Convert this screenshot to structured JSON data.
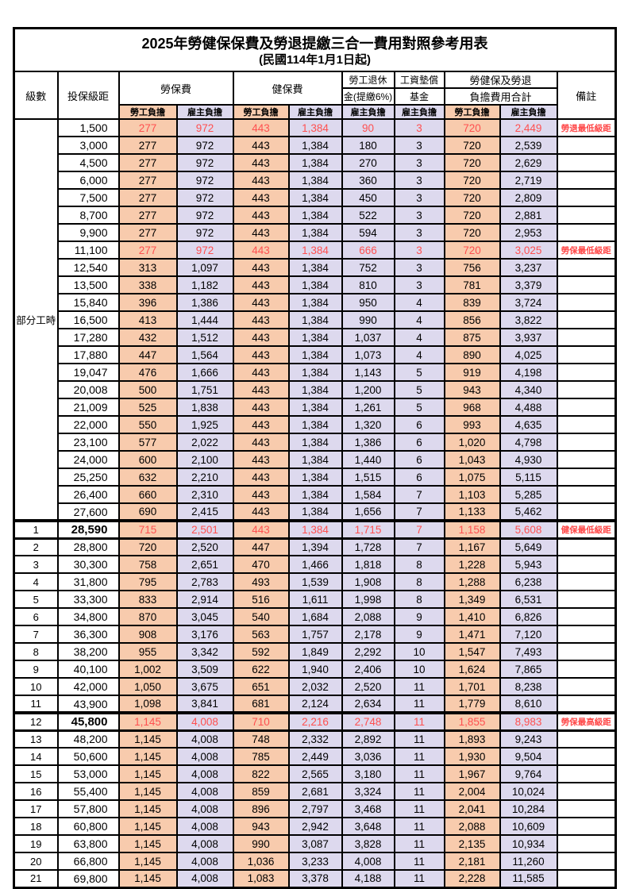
{
  "page": {
    "title": "2025年勞健保保費及勞退提繳三合一費用對照參考用表",
    "subtitle": "(民國114年1月1日起)"
  },
  "table": {
    "colors": {
      "employee_bg": "#F8CBAD",
      "employer_bg": "#DDD9EE",
      "highlight_text": "#FF5050",
      "remark_text": "#FF4646",
      "border": "#000000"
    },
    "headers": {
      "level": "級數",
      "salary": "投保級距",
      "labor_fee": "勞保費",
      "health_fee": "健保費",
      "pension_line1": "勞工退休",
      "pension_line2": "金(提繳6%)",
      "wage_fund_line1": "工資墊償",
      "wage_fund_line2": "基金",
      "total_line1": "勞健保及勞退",
      "total_line2": "負擔費用合計",
      "remark": "備註",
      "employee_burden": "勞工負擔",
      "employer_burden": "雇主負擔"
    },
    "part_time": {
      "label": "部分工時",
      "row_count": 23
    },
    "rows": [
      {
        "level": "",
        "salary": "1,500",
        "values": [
          "277",
          "972",
          "443",
          "1,384",
          "90",
          "3",
          "720",
          "2,449"
        ],
        "remark": "勞退最低級距",
        "highlight": true
      },
      {
        "level": "",
        "salary": "3,000",
        "values": [
          "277",
          "972",
          "443",
          "1,384",
          "180",
          "3",
          "720",
          "2,539"
        ],
        "remark": ""
      },
      {
        "level": "",
        "salary": "4,500",
        "values": [
          "277",
          "972",
          "443",
          "1,384",
          "270",
          "3",
          "720",
          "2,629"
        ],
        "remark": ""
      },
      {
        "level": "",
        "salary": "6,000",
        "values": [
          "277",
          "972",
          "443",
          "1,384",
          "360",
          "3",
          "720",
          "2,719"
        ],
        "remark": ""
      },
      {
        "level": "",
        "salary": "7,500",
        "values": [
          "277",
          "972",
          "443",
          "1,384",
          "450",
          "3",
          "720",
          "2,809"
        ],
        "remark": ""
      },
      {
        "level": "",
        "salary": "8,700",
        "values": [
          "277",
          "972",
          "443",
          "1,384",
          "522",
          "3",
          "720",
          "2,881"
        ],
        "remark": ""
      },
      {
        "level": "",
        "salary": "9,900",
        "values": [
          "277",
          "972",
          "443",
          "1,384",
          "594",
          "3",
          "720",
          "2,953"
        ],
        "remark": ""
      },
      {
        "level": "",
        "salary": "11,100",
        "values": [
          "277",
          "972",
          "443",
          "1,384",
          "666",
          "3",
          "720",
          "3,025"
        ],
        "remark": "勞保最低級距",
        "highlight": true
      },
      {
        "level": "",
        "salary": "12,540",
        "values": [
          "313",
          "1,097",
          "443",
          "1,384",
          "752",
          "3",
          "756",
          "3,237"
        ],
        "remark": ""
      },
      {
        "level": "",
        "salary": "13,500",
        "values": [
          "338",
          "1,182",
          "443",
          "1,384",
          "810",
          "3",
          "781",
          "3,379"
        ],
        "remark": ""
      },
      {
        "level": "",
        "salary": "15,840",
        "values": [
          "396",
          "1,386",
          "443",
          "1,384",
          "950",
          "4",
          "839",
          "3,724"
        ],
        "remark": ""
      },
      {
        "level": "",
        "salary": "16,500",
        "values": [
          "413",
          "1,444",
          "443",
          "1,384",
          "990",
          "4",
          "856",
          "3,822"
        ],
        "remark": ""
      },
      {
        "level": "",
        "salary": "17,280",
        "values": [
          "432",
          "1,512",
          "443",
          "1,384",
          "1,037",
          "4",
          "875",
          "3,937"
        ],
        "remark": ""
      },
      {
        "level": "",
        "salary": "17,880",
        "values": [
          "447",
          "1,564",
          "443",
          "1,384",
          "1,073",
          "4",
          "890",
          "4,025"
        ],
        "remark": ""
      },
      {
        "level": "",
        "salary": "19,047",
        "values": [
          "476",
          "1,666",
          "443",
          "1,384",
          "1,143",
          "5",
          "919",
          "4,198"
        ],
        "remark": ""
      },
      {
        "level": "",
        "salary": "20,008",
        "values": [
          "500",
          "1,751",
          "443",
          "1,384",
          "1,200",
          "5",
          "943",
          "4,340"
        ],
        "remark": ""
      },
      {
        "level": "",
        "salary": "21,009",
        "values": [
          "525",
          "1,838",
          "443",
          "1,384",
          "1,261",
          "5",
          "968",
          "4,488"
        ],
        "remark": ""
      },
      {
        "level": "",
        "salary": "22,000",
        "values": [
          "550",
          "1,925",
          "443",
          "1,384",
          "1,320",
          "6",
          "993",
          "4,635"
        ],
        "remark": ""
      },
      {
        "level": "",
        "salary": "23,100",
        "values": [
          "577",
          "2,022",
          "443",
          "1,384",
          "1,386",
          "6",
          "1,020",
          "4,798"
        ],
        "remark": ""
      },
      {
        "level": "",
        "salary": "24,000",
        "values": [
          "600",
          "2,100",
          "443",
          "1,384",
          "1,440",
          "6",
          "1,043",
          "4,930"
        ],
        "remark": ""
      },
      {
        "level": "",
        "salary": "25,250",
        "values": [
          "632",
          "2,210",
          "443",
          "1,384",
          "1,515",
          "6",
          "1,075",
          "5,115"
        ],
        "remark": ""
      },
      {
        "level": "",
        "salary": "26,400",
        "values": [
          "660",
          "2,310",
          "443",
          "1,384",
          "1,584",
          "7",
          "1,103",
          "5,285"
        ],
        "remark": ""
      },
      {
        "level": "",
        "salary": "27,600",
        "values": [
          "690",
          "2,415",
          "443",
          "1,384",
          "1,656",
          "7",
          "1,133",
          "5,462"
        ],
        "remark": ""
      },
      {
        "level": "1",
        "salary": "28,590",
        "values": [
          "715",
          "2,501",
          "443",
          "1,384",
          "1,715",
          "7",
          "1,158",
          "5,608"
        ],
        "remark": "健保最低級距",
        "highlight": true,
        "emphasis": true
      },
      {
        "level": "2",
        "salary": "28,800",
        "values": [
          "720",
          "2,520",
          "447",
          "1,394",
          "1,728",
          "7",
          "1,167",
          "5,649"
        ],
        "remark": ""
      },
      {
        "level": "3",
        "salary": "30,300",
        "values": [
          "758",
          "2,651",
          "470",
          "1,466",
          "1,818",
          "8",
          "1,228",
          "5,943"
        ],
        "remark": ""
      },
      {
        "level": "4",
        "salary": "31,800",
        "values": [
          "795",
          "2,783",
          "493",
          "1,539",
          "1,908",
          "8",
          "1,288",
          "6,238"
        ],
        "remark": ""
      },
      {
        "level": "5",
        "salary": "33,300",
        "values": [
          "833",
          "2,914",
          "516",
          "1,611",
          "1,998",
          "8",
          "1,349",
          "6,531"
        ],
        "remark": ""
      },
      {
        "level": "6",
        "salary": "34,800",
        "values": [
          "870",
          "3,045",
          "540",
          "1,684",
          "2,088",
          "9",
          "1,410",
          "6,826"
        ],
        "remark": ""
      },
      {
        "level": "7",
        "salary": "36,300",
        "values": [
          "908",
          "3,176",
          "563",
          "1,757",
          "2,178",
          "9",
          "1,471",
          "7,120"
        ],
        "remark": ""
      },
      {
        "level": "8",
        "salary": "38,200",
        "values": [
          "955",
          "3,342",
          "592",
          "1,849",
          "2,292",
          "10",
          "1,547",
          "7,493"
        ],
        "remark": ""
      },
      {
        "level": "9",
        "salary": "40,100",
        "values": [
          "1,002",
          "3,509",
          "622",
          "1,940",
          "2,406",
          "10",
          "1,624",
          "7,865"
        ],
        "remark": ""
      },
      {
        "level": "10",
        "salary": "42,000",
        "values": [
          "1,050",
          "3,675",
          "651",
          "2,032",
          "2,520",
          "11",
          "1,701",
          "8,238"
        ],
        "remark": ""
      },
      {
        "level": "11",
        "salary": "43,900",
        "values": [
          "1,098",
          "3,841",
          "681",
          "2,124",
          "2,634",
          "11",
          "1,779",
          "8,610"
        ],
        "remark": ""
      },
      {
        "level": "12",
        "salary": "45,800",
        "values": [
          "1,145",
          "4,008",
          "710",
          "2,216",
          "2,748",
          "11",
          "1,855",
          "8,983"
        ],
        "remark": "勞保最高級距",
        "highlight": true,
        "emphasis": true
      },
      {
        "level": "13",
        "salary": "48,200",
        "values": [
          "1,145",
          "4,008",
          "748",
          "2,332",
          "2,892",
          "11",
          "1,893",
          "9,243"
        ],
        "remark": ""
      },
      {
        "level": "14",
        "salary": "50,600",
        "values": [
          "1,145",
          "4,008",
          "785",
          "2,449",
          "3,036",
          "11",
          "1,930",
          "9,504"
        ],
        "remark": ""
      },
      {
        "level": "15",
        "salary": "53,000",
        "values": [
          "1,145",
          "4,008",
          "822",
          "2,565",
          "3,180",
          "11",
          "1,967",
          "9,764"
        ],
        "remark": ""
      },
      {
        "level": "16",
        "salary": "55,400",
        "values": [
          "1,145",
          "4,008",
          "859",
          "2,681",
          "3,324",
          "11",
          "2,004",
          "10,024"
        ],
        "remark": ""
      },
      {
        "level": "17",
        "salary": "57,800",
        "values": [
          "1,145",
          "4,008",
          "896",
          "2,797",
          "3,468",
          "11",
          "2,041",
          "10,284"
        ],
        "remark": ""
      },
      {
        "level": "18",
        "salary": "60,800",
        "values": [
          "1,145",
          "4,008",
          "943",
          "2,942",
          "3,648",
          "11",
          "2,088",
          "10,609"
        ],
        "remark": ""
      },
      {
        "level": "19",
        "salary": "63,800",
        "values": [
          "1,145",
          "4,008",
          "990",
          "3,087",
          "3,828",
          "11",
          "2,135",
          "10,934"
        ],
        "remark": ""
      },
      {
        "level": "20",
        "salary": "66,800",
        "values": [
          "1,145",
          "4,008",
          "1,036",
          "3,233",
          "4,008",
          "11",
          "2,181",
          "11,260"
        ],
        "remark": ""
      },
      {
        "level": "21",
        "salary": "69,800",
        "values": [
          "1,145",
          "4,008",
          "1,083",
          "3,378",
          "4,188",
          "11",
          "2,228",
          "11,585"
        ],
        "remark": ""
      }
    ]
  }
}
